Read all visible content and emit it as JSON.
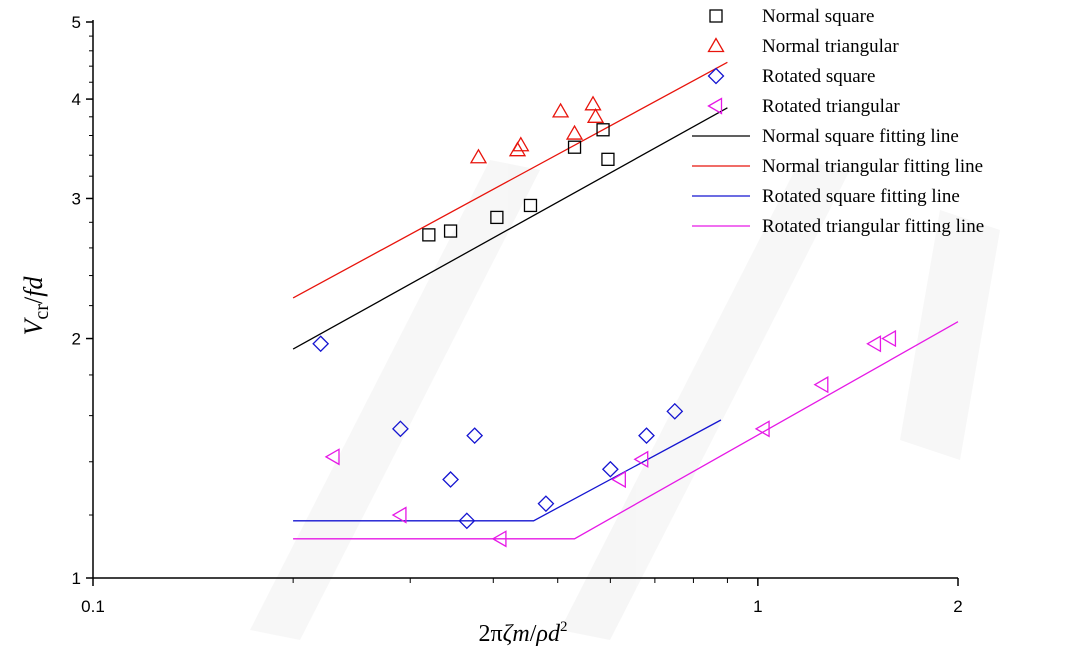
{
  "chart_data": {
    "type": "scatter",
    "x_scale": "log",
    "y_scale": "log",
    "xlim": [
      0.1,
      2
    ],
    "ylim": [
      1,
      5
    ],
    "x_ticks": [
      "0.1",
      "1",
      "2"
    ],
    "y_ticks": [
      "1",
      "2",
      "3",
      "4",
      "5"
    ],
    "xlabel": {
      "pre": "2π",
      "zeta": "ζ",
      "m": "m",
      "slash": "/",
      "rho": "ρ",
      "d": "d",
      "sup": "2"
    },
    "ylabel": {
      "v": "V",
      "sub": "cr",
      "slash": "/",
      "fd": "fd"
    },
    "grid": false,
    "legend_position": "top-right",
    "series": [
      {
        "name": "Normal square",
        "marker": "square",
        "color": "#000000",
        "points": [
          [
            0.32,
            2.7
          ],
          [
            0.345,
            2.73
          ],
          [
            0.405,
            2.84
          ],
          [
            0.455,
            2.94
          ],
          [
            0.53,
            3.48
          ],
          [
            0.585,
            3.66
          ],
          [
            0.595,
            3.36
          ]
        ]
      },
      {
        "name": "Normal triangular",
        "marker": "triangle-up",
        "color": "#e8140c",
        "points": [
          [
            0.38,
            3.38
          ],
          [
            0.435,
            3.45
          ],
          [
            0.44,
            3.5
          ],
          [
            0.505,
            3.86
          ],
          [
            0.53,
            3.62
          ],
          [
            0.565,
            3.94
          ],
          [
            0.57,
            3.8
          ]
        ]
      },
      {
        "name": " Rotated square",
        "marker": "diamond",
        "color": "#1515d1",
        "points": [
          [
            0.22,
            1.97
          ],
          [
            0.29,
            1.54
          ],
          [
            0.345,
            1.33
          ],
          [
            0.365,
            1.18
          ],
          [
            0.375,
            1.51
          ],
          [
            0.48,
            1.24
          ],
          [
            0.6,
            1.37
          ],
          [
            0.68,
            1.51
          ],
          [
            0.75,
            1.62
          ]
        ]
      },
      {
        "name": "Rotated triangular",
        "marker": "triangle-left",
        "color": "#e619e6",
        "points": [
          [
            0.23,
            1.42
          ],
          [
            0.29,
            1.2
          ],
          [
            0.41,
            1.12
          ],
          [
            0.62,
            1.33
          ],
          [
            0.67,
            1.41
          ],
          [
            1.02,
            1.54
          ],
          [
            1.25,
            1.75
          ],
          [
            1.5,
            1.97
          ],
          [
            1.58,
            2.0
          ]
        ]
      }
    ],
    "fit_lines": [
      {
        "name": "Normal square fitting line",
        "color": "#000000",
        "points": [
          [
            0.2,
            1.94
          ],
          [
            0.9,
            3.9
          ]
        ]
      },
      {
        "name": "Normal triangular fitting line",
        "color": "#e8140c",
        "points": [
          [
            0.2,
            2.25
          ],
          [
            0.9,
            4.45
          ]
        ]
      },
      {
        "name": "Rotated square fitting line",
        "color": "#1515d1",
        "points": [
          [
            0.2,
            1.18
          ],
          [
            0.46,
            1.18
          ],
          [
            0.88,
            1.58
          ]
        ]
      },
      {
        "name": "Rotated triangular fitting line",
        "color": "#e619e6",
        "points": [
          [
            0.2,
            1.12
          ],
          [
            0.53,
            1.12
          ],
          [
            2.0,
            2.1
          ]
        ]
      }
    ]
  }
}
